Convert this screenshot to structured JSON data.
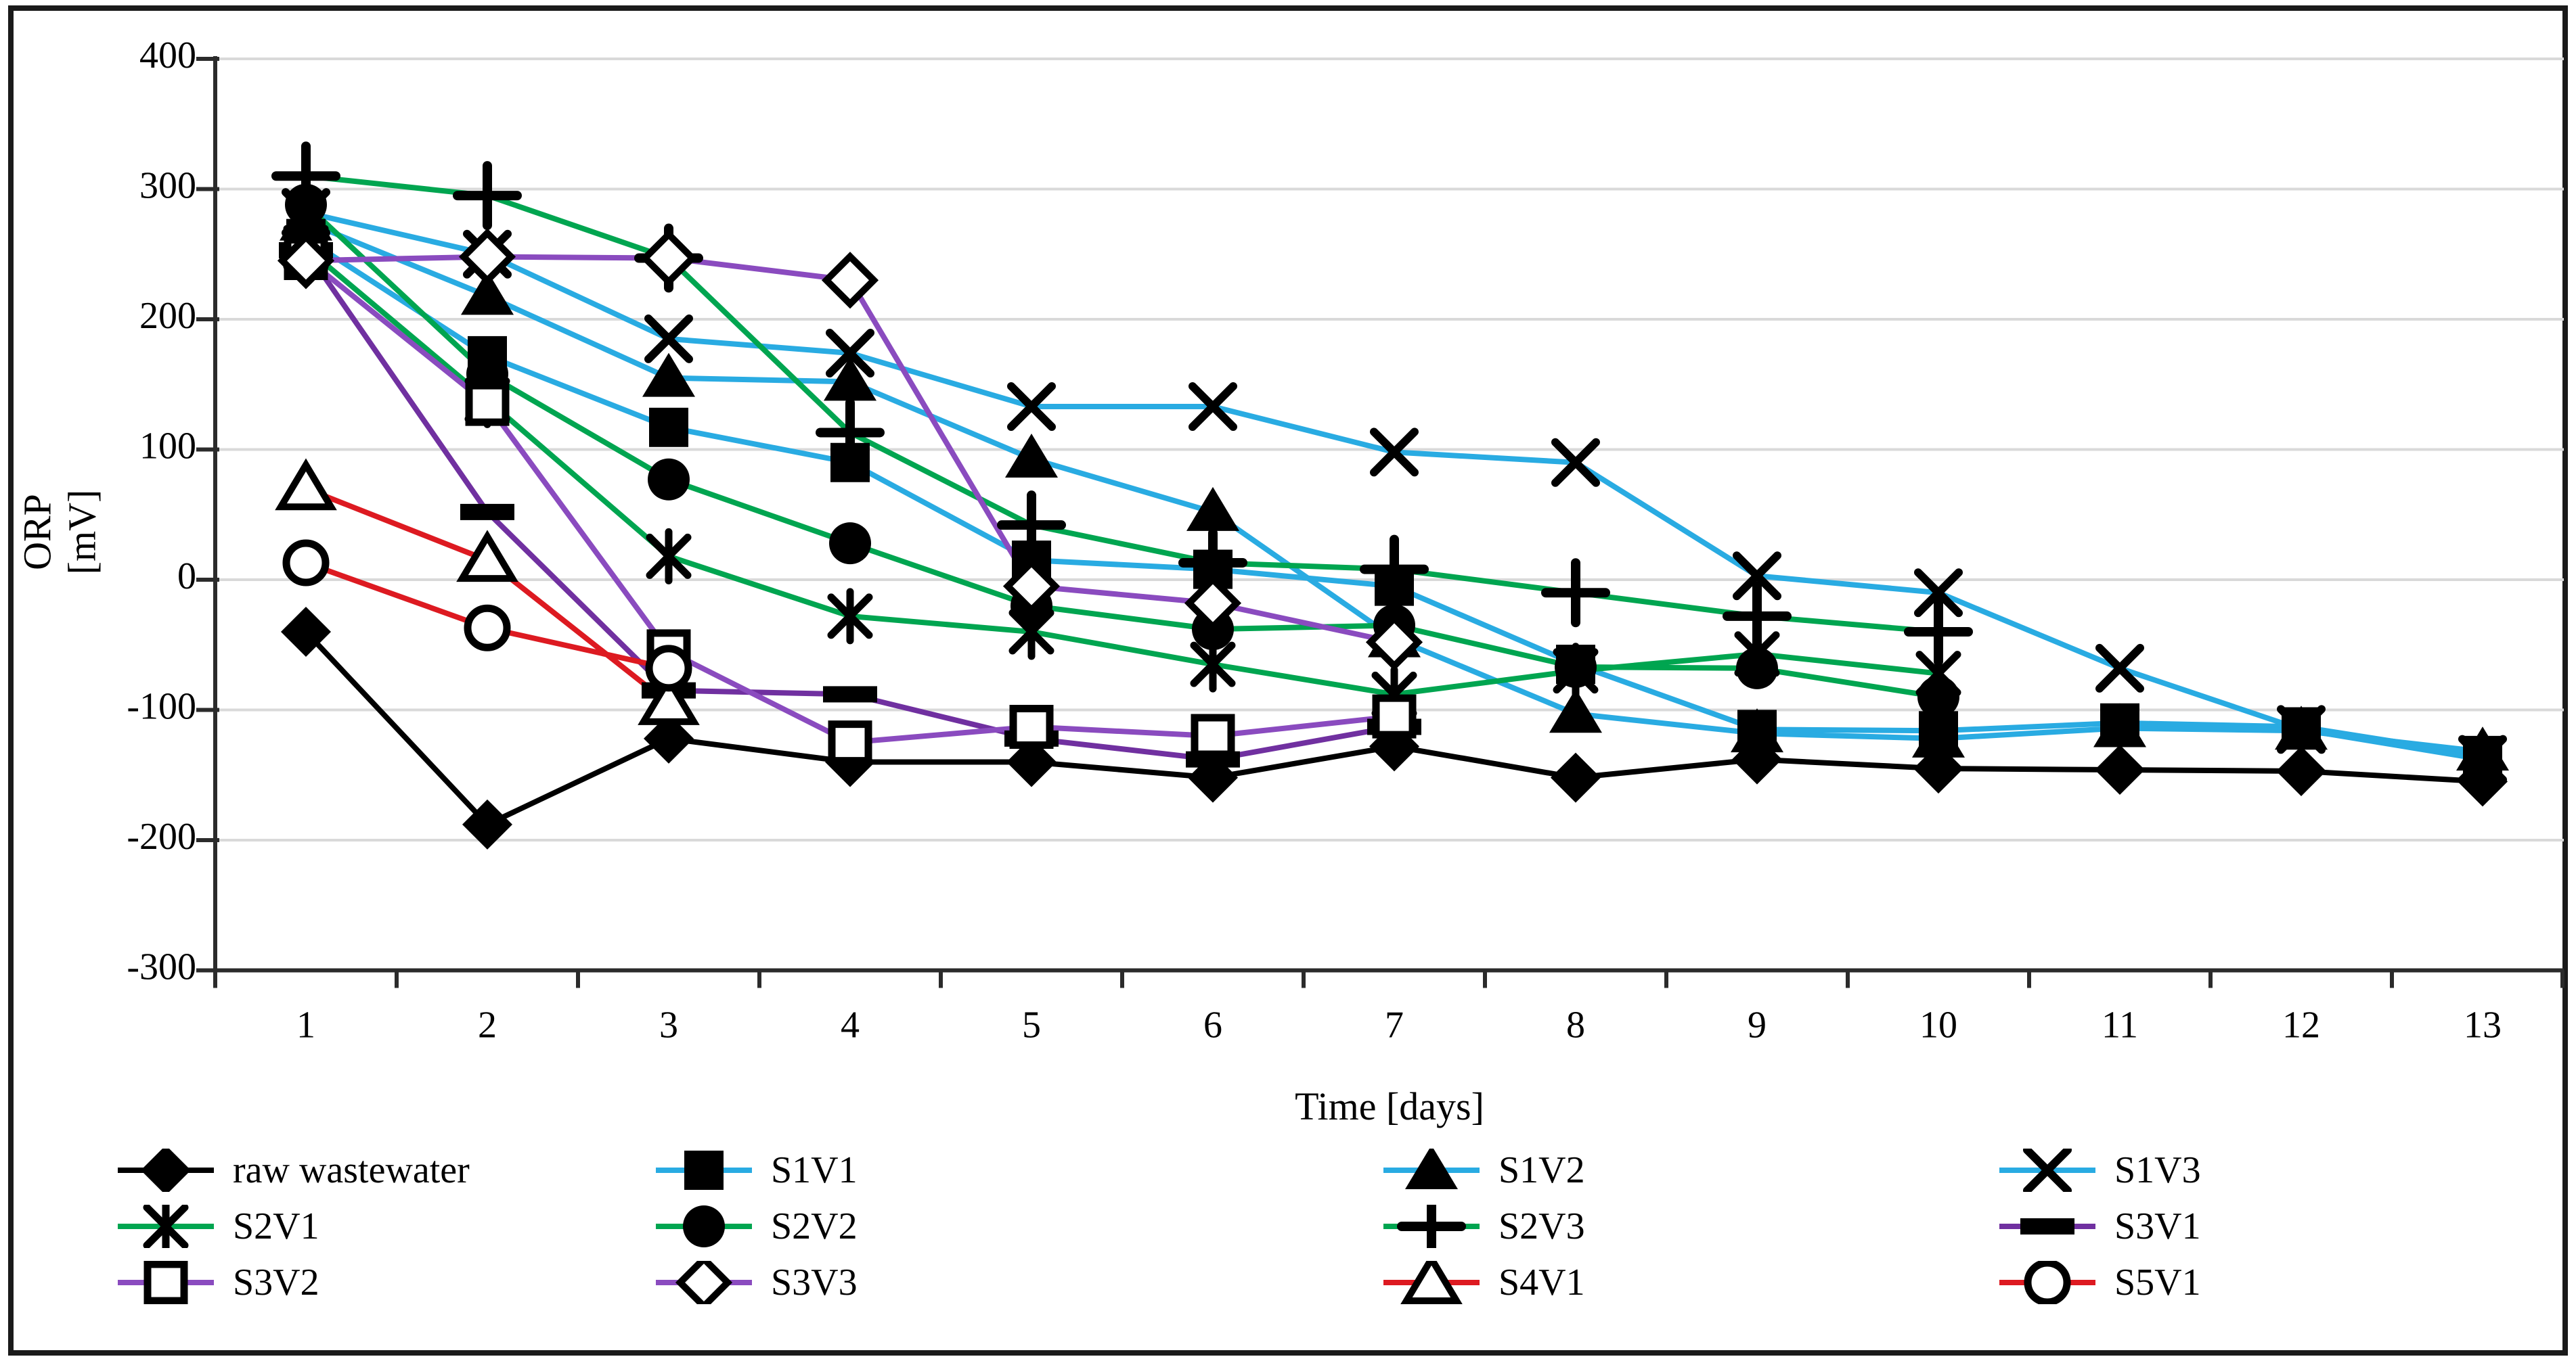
{
  "figure": {
    "ylabel_line1": "ORP",
    "ylabel_line2": "[mV]",
    "xlabel": "Time [days]"
  },
  "chart_data": {
    "type": "line",
    "title": "",
    "xlabel": "Time [days]",
    "ylabel": "ORP [mV]",
    "x": [
      1,
      2,
      3,
      4,
      5,
      6,
      7,
      8,
      9,
      10,
      11,
      12,
      13
    ],
    "x_tick_labels": [
      "1",
      "2",
      "3",
      "4",
      "5",
      "6",
      "7",
      "8",
      "9",
      "10",
      "11",
      "12",
      "13"
    ],
    "ylim": [
      -300,
      400
    ],
    "yticks": [
      400,
      300,
      200,
      100,
      0,
      -100,
      -200,
      -300
    ],
    "ytick_labels": [
      "400",
      "300",
      "200",
      "100",
      "0",
      "-100",
      "-200",
      "-300"
    ],
    "grid": true,
    "grid_color": "#d9d9d9",
    "axis_color": "#2b2b2b",
    "marker_color": "#000000",
    "legend_position": "bottom",
    "series": [
      {
        "name": "raw wastewater",
        "color": "#000000",
        "marker": "diamond",
        "values": [
          -40,
          -188,
          -122,
          -140,
          -140,
          -152,
          -128,
          -152,
          -138,
          -145,
          -146,
          -147,
          -155
        ]
      },
      {
        "name": "S1V1",
        "color": "#29abe2",
        "marker": "square",
        "values": [
          262,
          172,
          117,
          90,
          15,
          8,
          -5,
          -65,
          -115,
          -116,
          -110,
          -113,
          -135
        ]
      },
      {
        "name": "S1V2",
        "color": "#29abe2",
        "marker": "triangle",
        "values": [
          275,
          218,
          155,
          152,
          93,
          52,
          -45,
          -103,
          -118,
          -122,
          -114,
          -116,
          -132
        ]
      },
      {
        "name": "S1V3",
        "color": "#29abe2",
        "marker": "x",
        "values": [
          282,
          250,
          185,
          174,
          133,
          133,
          98,
          90,
          3,
          -10,
          -68,
          -115,
          -138
        ]
      },
      {
        "name": "S2V1",
        "color": "#00a550",
        "marker": "asterisk",
        "values": [
          255,
          138,
          18,
          -28,
          -40,
          -65,
          -88,
          -70,
          -57,
          -72
        ]
      },
      {
        "name": "S2V2",
        "color": "#00a550",
        "marker": "circle",
        "values": [
          288,
          158,
          77,
          28,
          -20,
          -38,
          -35,
          -67,
          -68,
          -90
        ]
      },
      {
        "name": "S2V3",
        "color": "#00a550",
        "marker": "plus",
        "values": [
          310,
          295,
          247,
          113,
          42,
          13,
          8,
          -10,
          -28,
          -40
        ]
      },
      {
        "name": "S3V1",
        "color": "#7030a0",
        "marker": "dash",
        "values": [
          253,
          52,
          -85,
          -88,
          -122,
          -138,
          -113
        ]
      },
      {
        "name": "S3V2",
        "color": "#8a4bbf",
        "marker": "square-open",
        "values": [
          247,
          135,
          -55,
          -125,
          -113,
          -120,
          -105
        ]
      },
      {
        "name": "S3V3",
        "color": "#8a4bbf",
        "marker": "diamond-open",
        "values": [
          245,
          248,
          247,
          230,
          -5,
          -18,
          -48
        ]
      },
      {
        "name": "S4V1",
        "color": "#dd1a21",
        "marker": "triangle-open",
        "values": [
          70,
          15,
          -95
        ]
      },
      {
        "name": "S5V1",
        "color": "#dd1a21",
        "marker": "circle-open",
        "values": [
          13,
          -37,
          -68
        ]
      }
    ]
  }
}
